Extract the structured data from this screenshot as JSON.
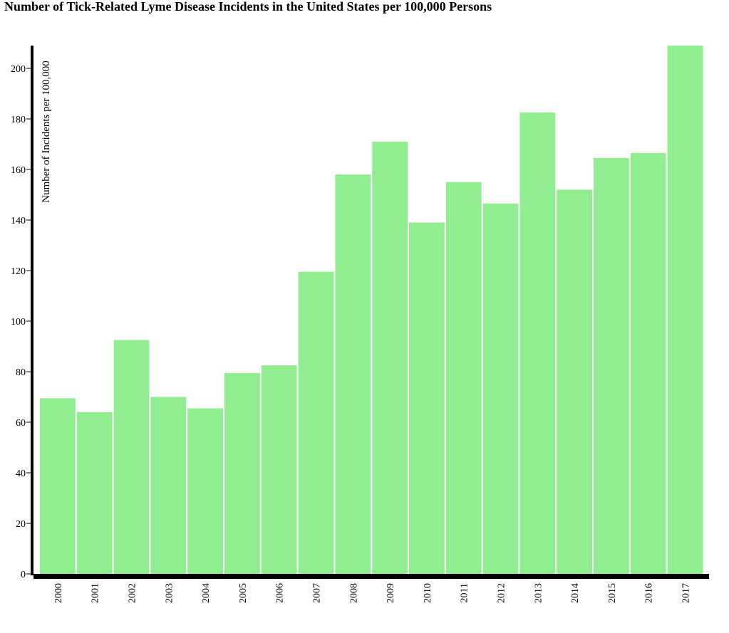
{
  "chart_data": {
    "type": "bar",
    "title": "Number of Tick-Related Lyme Disease Incidents in the United States per 100,000 Persons",
    "xlabel": "",
    "ylabel": "Number of Incidents per 100,000",
    "categories": [
      "2000",
      "2001",
      "2002",
      "2003",
      "2004",
      "2005",
      "2006",
      "2007",
      "2008",
      "2009",
      "2010",
      "2011",
      "2012",
      "2013",
      "2014",
      "2015",
      "2016",
      "2017"
    ],
    "values": [
      69.5,
      64,
      92.5,
      70,
      65.5,
      79.5,
      82.5,
      119.5,
      158,
      171,
      139,
      155,
      146.5,
      182.5,
      152,
      164.5,
      166.5,
      209
    ],
    "ylim": [
      0,
      209
    ],
    "yticks": [
      0,
      20,
      40,
      60,
      80,
      100,
      120,
      140,
      160,
      180,
      200
    ],
    "grid": false,
    "bar_color": "#90ee90",
    "axis_color": "#000000"
  }
}
